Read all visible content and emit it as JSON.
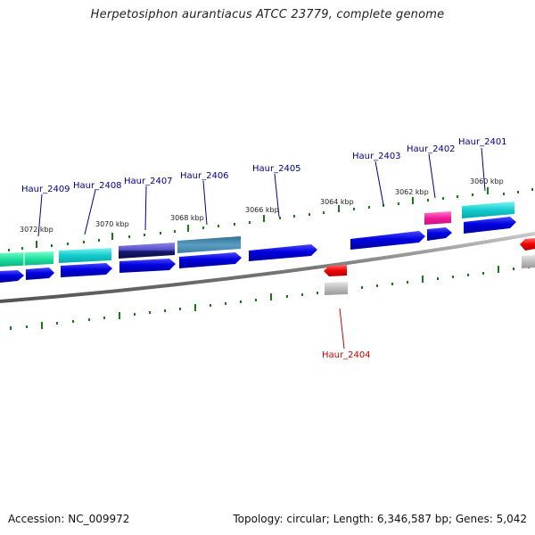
{
  "title": "Herpetosiphon aurantiacus ATCC 23779, complete genome",
  "footer": {
    "accession": "Accession: NC_009972",
    "summary": "Topology: circular; Length: 6,346,587 bp; Genes: 5,042"
  },
  "colors": {
    "label_forward": "#00008b",
    "label_reverse": "#cc0000",
    "ticks": "#1a7a1a",
    "backbone": "#7a7a7a"
  },
  "kbp_marks": [
    {
      "text": "3072 kbp"
    },
    {
      "text": "3070 kbp"
    },
    {
      "text": "3068 kbp"
    },
    {
      "text": "3066 kbp"
    },
    {
      "text": "3064 kbp"
    },
    {
      "text": "3062 kbp"
    },
    {
      "text": "3060 kbp"
    }
  ],
  "gene_labels": [
    {
      "text": "Haur_2409",
      "strand": "forward"
    },
    {
      "text": "Haur_2408",
      "strand": "forward"
    },
    {
      "text": "Haur_2407",
      "strand": "forward"
    },
    {
      "text": "Haur_2406",
      "strand": "forward"
    },
    {
      "text": "Haur_2405",
      "strand": "forward"
    },
    {
      "text": "Haur_2403",
      "strand": "forward"
    },
    {
      "text": "Haur_2402",
      "strand": "forward"
    },
    {
      "text": "Haur_2401",
      "strand": "forward"
    },
    {
      "text": "Haur_2404",
      "strand": "reverse"
    }
  ]
}
